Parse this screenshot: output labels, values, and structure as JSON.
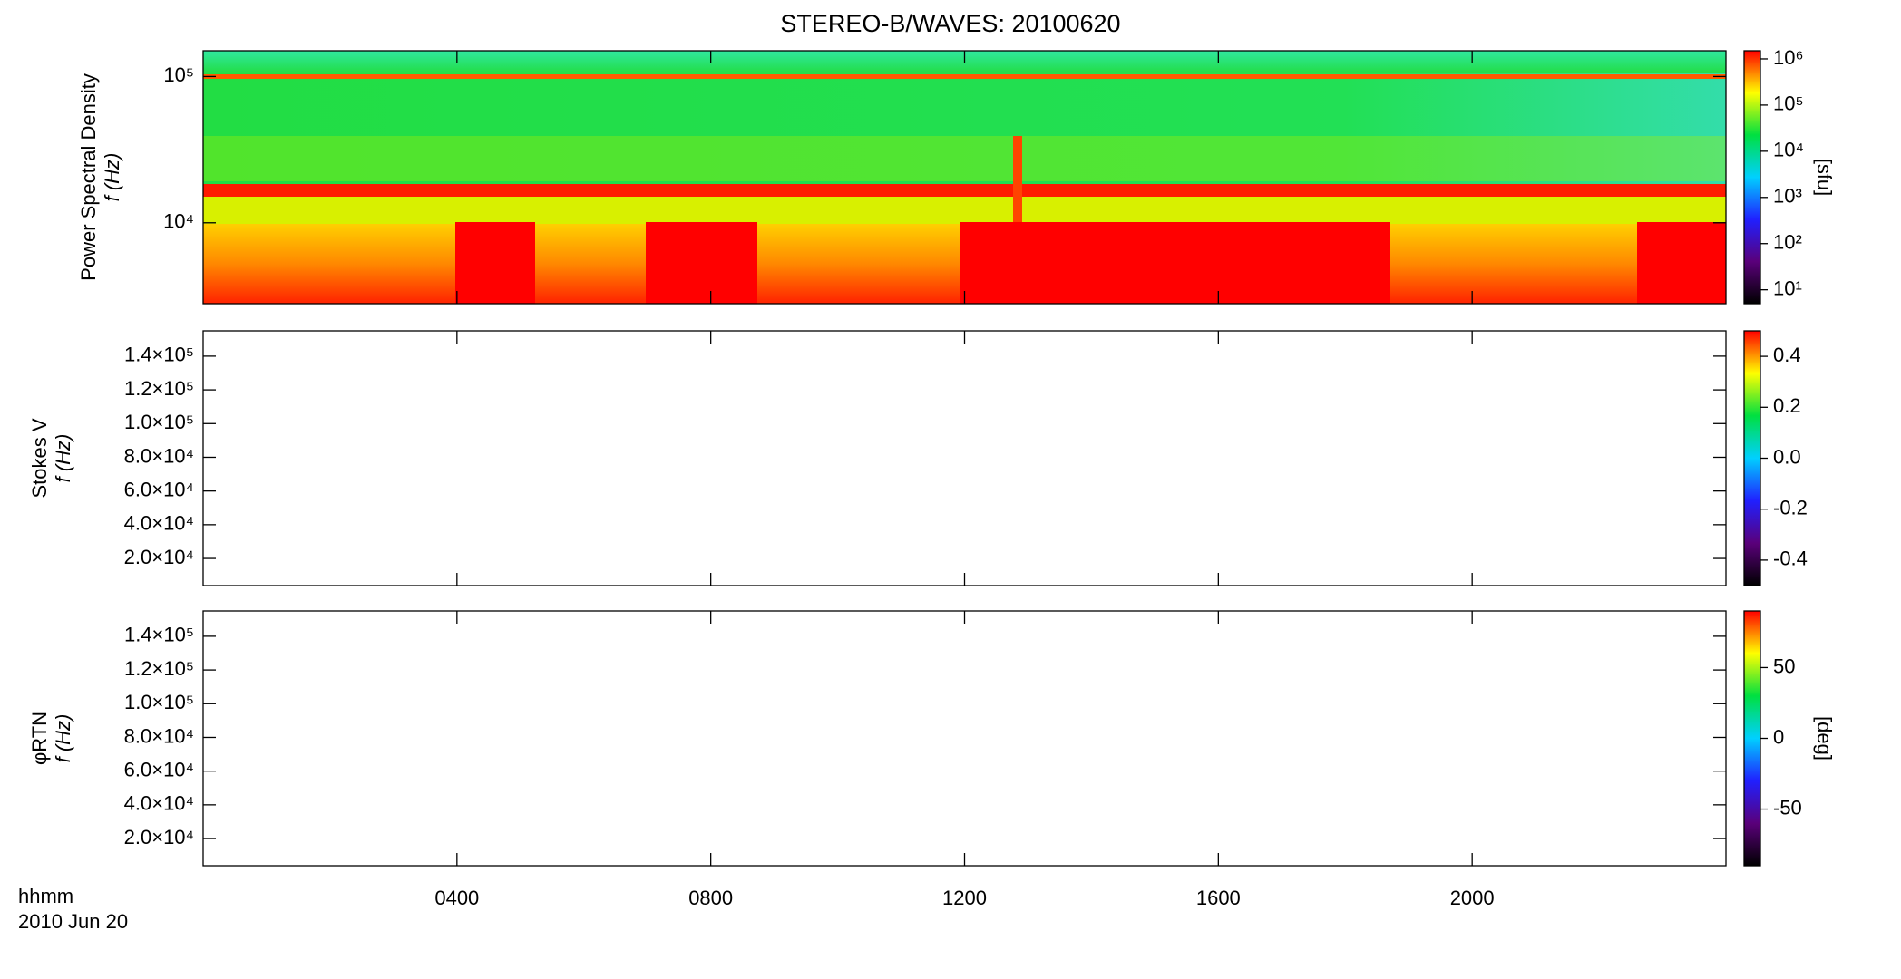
{
  "title": "STEREO-B/WAVES: 20100620",
  "time_axis": {
    "label": "hhmm",
    "date": "2010 Jun 20",
    "xlim": [
      0,
      24
    ],
    "xticks": [
      {
        "value": 4,
        "label": "0400"
      },
      {
        "value": 8,
        "label": "0800"
      },
      {
        "value": 12,
        "label": "1200"
      },
      {
        "value": 16,
        "label": "1600"
      },
      {
        "value": 20,
        "label": "2000"
      }
    ]
  },
  "chart_data": [
    {
      "type": "heatmap",
      "ylabel": "Power Spectral Density",
      "yunit": "f (Hz)",
      "log_y": true,
      "ylim": [
        2800,
        150000
      ],
      "yticks": [
        {
          "value": 10000,
          "label": "10⁴"
        },
        {
          "value": 100000,
          "label": "10⁵"
        }
      ],
      "colorbar": {
        "log": true,
        "ylim": [
          5,
          1500000
        ],
        "label": "[sfu]",
        "colors": [
          "#000000",
          "#5a007a",
          "#2020ff",
          "#00d0ff",
          "#00e040",
          "#ffff00",
          "#ff0000"
        ],
        "yticks": [
          {
            "value": 10,
            "label": "10¹"
          },
          {
            "value": 100,
            "label": "10²"
          },
          {
            "value": 1000,
            "label": "10³"
          },
          {
            "value": 10000,
            "label": "10⁴"
          },
          {
            "value": 100000,
            "label": "10⁵"
          },
          {
            "value": 1000000,
            "label": "10⁶"
          }
        ]
      }
    },
    {
      "type": "heatmap",
      "ylabel": "Stokes V",
      "yunit": "f (Hz)",
      "log_y": false,
      "ylim": [
        3900,
        155000
      ],
      "yticks": [
        {
          "value": 20000,
          "label": "2.0×10⁴"
        },
        {
          "value": 40000,
          "label": "4.0×10⁴"
        },
        {
          "value": 60000,
          "label": "6.0×10⁴"
        },
        {
          "value": 80000,
          "label": "8.0×10⁴"
        },
        {
          "value": 100000,
          "label": "1.0×10⁵"
        },
        {
          "value": 120000,
          "label": "1.2×10⁵"
        },
        {
          "value": 140000,
          "label": "1.4×10⁵"
        }
      ],
      "colorbar": {
        "log": false,
        "ylim": [
          -0.5,
          0.5
        ],
        "colors": [
          "#000000",
          "#5a007a",
          "#2020ff",
          "#00d0ff",
          "#00e040",
          "#ffff00",
          "#ff0000"
        ],
        "yticks": [
          -0.4,
          -0.2,
          {
            "value": 0,
            "label": "0.0"
          },
          0.2,
          0.4
        ]
      }
    },
    {
      "type": "heatmap",
      "ylabel": "φRTN",
      "yunit": "f (Hz)",
      "log_y": false,
      "ylim": [
        3900,
        155000
      ],
      "yticks": [
        {
          "value": 20000,
          "label": "2.0×10⁴"
        },
        {
          "value": 40000,
          "label": "4.0×10⁴"
        },
        {
          "value": 60000,
          "label": "6.0×10⁴"
        },
        {
          "value": 80000,
          "label": "8.0×10⁴"
        },
        {
          "value": 100000,
          "label": "1.0×10⁵"
        },
        {
          "value": 120000,
          "label": "1.2×10⁵"
        },
        {
          "value": 140000,
          "label": "1.4×10⁵"
        }
      ],
      "colorbar": {
        "log": false,
        "ylim": [
          -90,
          90
        ],
        "label": "[deg]",
        "colors": [
          "#000000",
          "#5a007a",
          "#2020ff",
          "#00d0ff",
          "#00e040",
          "#ffff00",
          "#ff0000"
        ],
        "yticks": [
          -50,
          0,
          50
        ]
      }
    }
  ]
}
